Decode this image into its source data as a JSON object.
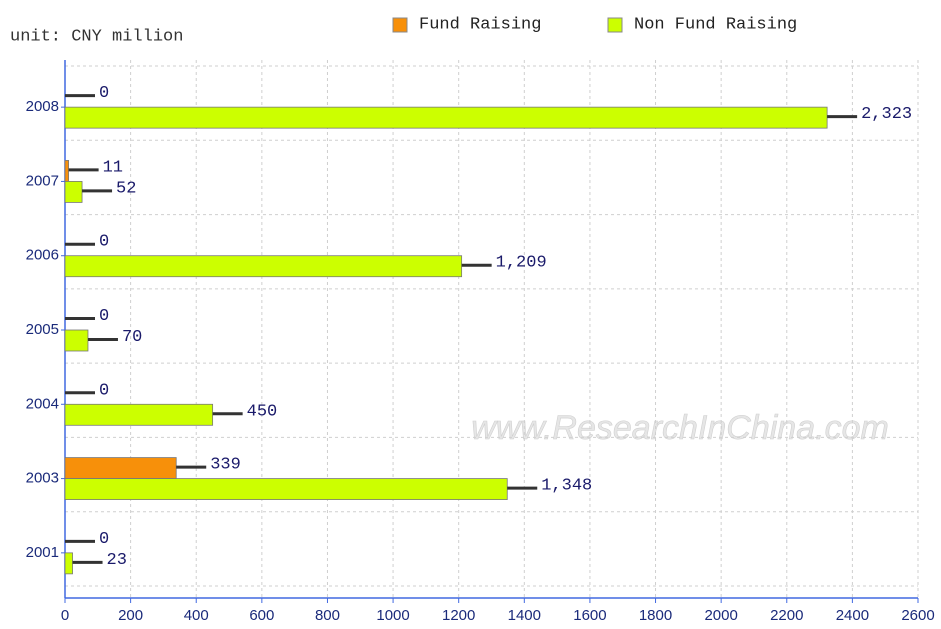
{
  "chart_data": {
    "type": "barh",
    "subtitle": "unit: CNY million",
    "annotation": "www.ResearchInChina.com",
    "categories": [
      "2008",
      "2007",
      "2006",
      "2005",
      "2004",
      "2003",
      "2001"
    ],
    "series": [
      {
        "name": "Fund Raising",
        "color": "#f7900a",
        "values": [
          0,
          11,
          0,
          0,
          0,
          339,
          0
        ]
      },
      {
        "name": "Non Fund Raising",
        "color": "#ccff00",
        "values": [
          2323,
          52,
          1209,
          70,
          450,
          1348,
          23
        ],
        "value_labels": [
          "2,323",
          "52",
          "1,209",
          "70",
          "450",
          "1,348",
          "23"
        ]
      }
    ],
    "xlim": [
      0,
      2600
    ],
    "xticks": [
      0,
      200,
      400,
      600,
      800,
      1000,
      1200,
      1400,
      1600,
      1800,
      2000,
      2200,
      2400,
      2600
    ],
    "grid": true,
    "legend": "top"
  }
}
